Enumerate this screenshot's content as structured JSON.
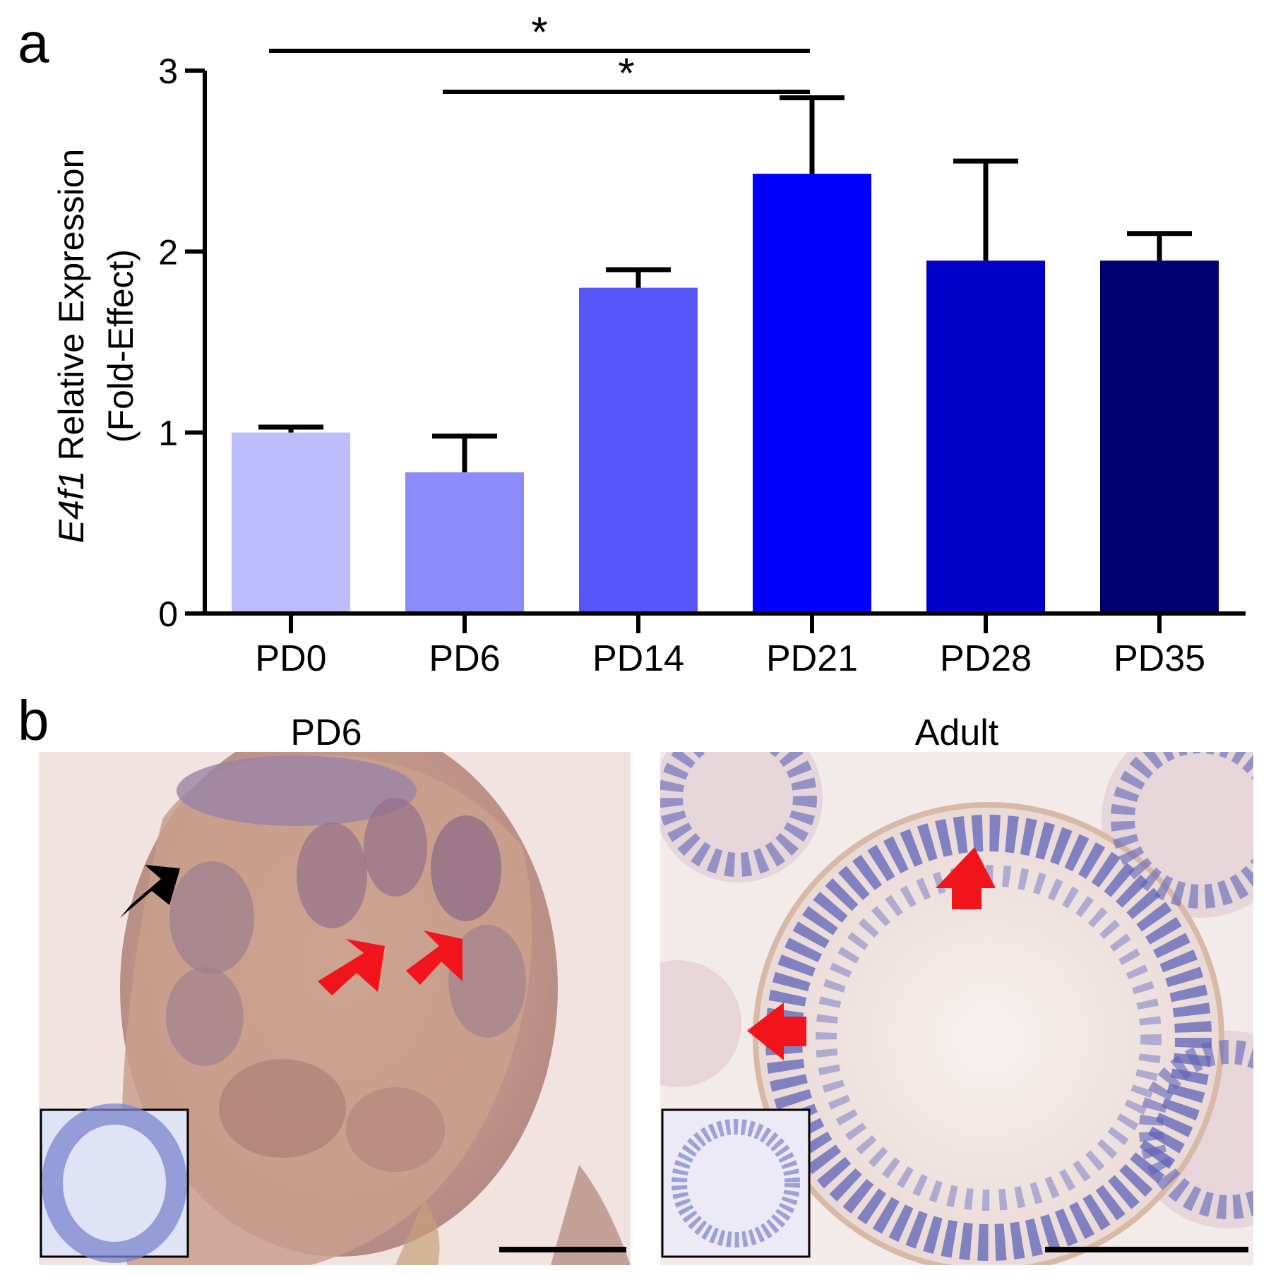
{
  "panel_labels": {
    "a": "a",
    "b": "b"
  },
  "chart_data": {
    "type": "bar",
    "title": "",
    "ylabel_italic": "E4f1",
    "ylabel_rest": " Relative Expression",
    "ylabel_line2": "(Fold-Effect)",
    "xlabel": "",
    "ylim": [
      0,
      3
    ],
    "yticks": [
      0,
      1,
      2,
      3
    ],
    "ytick_labels": [
      "0",
      "1",
      "2",
      "3"
    ],
    "categories": [
      "PD0",
      "PD6",
      "PD14",
      "PD21",
      "PD28",
      "PD35"
    ],
    "values": [
      1.0,
      0.78,
      1.8,
      2.43,
      1.95,
      1.95
    ],
    "errors": [
      0.03,
      0.2,
      0.1,
      0.42,
      0.55,
      0.15
    ],
    "colors": [
      "#bdbdfc",
      "#8b8bfb",
      "#5757f9",
      "#0000fa",
      "#0000c8",
      "#000070"
    ],
    "grid": false,
    "significance": [
      {
        "from": 0,
        "to": 3,
        "label": "*"
      },
      {
        "from": 1,
        "to": 3,
        "label": "*"
      }
    ]
  },
  "micrographs": [
    {
      "title": "PD6",
      "arrows": [
        "black",
        "red",
        "red"
      ],
      "inset": "negative-control"
    },
    {
      "title": "Adult",
      "arrows": [
        "red",
        "red"
      ],
      "inset": "negative-control"
    }
  ]
}
